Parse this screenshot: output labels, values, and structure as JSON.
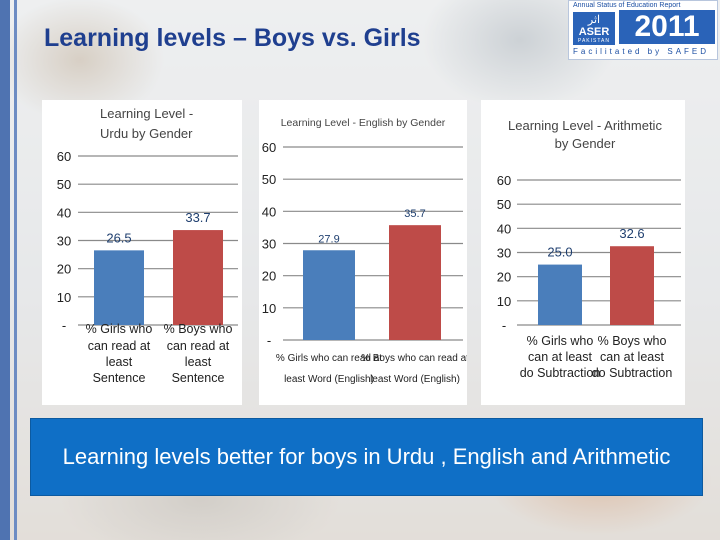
{
  "slide": {
    "title": "Learning levels – Boys vs. Girls",
    "caption": "Learning levels better for boys in Urdu , English and Arithmetic"
  },
  "logo": {
    "top_text": "Annual Status of Education Report",
    "urdu": "اثر",
    "aser": "ASER",
    "pakistan": "PAKISTAN",
    "year": "2011",
    "facilitated": "Facilitated by SAFED"
  },
  "colors": {
    "girls": "#4a7ebb",
    "boys": "#be4b48",
    "title": "#1f3f8f",
    "caption_bg": "#0f6fc6"
  },
  "chart_data": [
    {
      "type": "bar",
      "title": "Learning Level - Urdu by Gender",
      "title_lines": [
        "Learning Level -",
        "Urdu by Gender"
      ],
      "categories": [
        "% Girls who can read at least Sentence",
        "% Boys who can read at least Sentence"
      ],
      "category_lines": [
        [
          "% Girls who",
          "can read at",
          "least",
          "Sentence"
        ],
        [
          "% Boys who",
          "can read at",
          "least",
          "Sentence"
        ]
      ],
      "values": [
        26.5,
        33.7
      ],
      "value_labels": [
        "26.5",
        "33.7"
      ],
      "ylim": [
        0,
        60
      ],
      "yticks": [
        "-",
        "10",
        "20",
        "30",
        "40",
        "50",
        "60"
      ],
      "grid": true
    },
    {
      "type": "bar",
      "title": "Learning Level - English by Gender",
      "title_lines": [
        "Learning Level - English by Gender"
      ],
      "categories": [
        "% Girls who can read at least Word (English)",
        "% Boys who can read at least Word (English)"
      ],
      "category_lines": [
        [
          "% Girls who can read at",
          "least Word (English)"
        ],
        [
          "% Boys who can read at",
          "least Word (English)"
        ]
      ],
      "values": [
        27.9,
        35.7
      ],
      "value_labels": [
        "27.9",
        "35.7"
      ],
      "ylim": [
        0,
        60
      ],
      "yticks": [
        "-",
        "10",
        "20",
        "30",
        "40",
        "50",
        "60"
      ],
      "grid": true
    },
    {
      "type": "bar",
      "title": "Learning Level - Arithmetic by Gender",
      "title_lines": [
        "Learning Level - Arithmetic",
        "by Gender"
      ],
      "categories": [
        "% Girls who can at least do Subtraction",
        "% Boys who can at least do Subtraction"
      ],
      "category_lines": [
        [
          "% Girls who",
          "can at least",
          "do Subtraction"
        ],
        [
          "% Boys who",
          "can at least",
          "do Subtraction"
        ]
      ],
      "values": [
        25.0,
        32.6
      ],
      "value_labels": [
        "25.0",
        "32.6"
      ],
      "ylim": [
        0,
        60
      ],
      "yticks": [
        "-",
        "10",
        "20",
        "30",
        "40",
        "50",
        "60"
      ],
      "grid": true
    }
  ]
}
